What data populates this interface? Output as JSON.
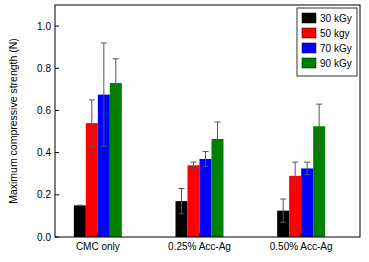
{
  "chart_data": {
    "type": "bar",
    "y_label": "Maximum compressive strength (N)",
    "categories": [
      "CMC only",
      "0.25% Acc-Ag",
      "0.50% Acc-Ag"
    ],
    "series": [
      {
        "name": "30 kGy",
        "color": "#000000",
        "values": [
          0.15,
          0.17,
          0.125
        ],
        "errors": [
          0,
          0.06,
          0.055
        ]
      },
      {
        "name": "50 kgy",
        "color": "#ff0000",
        "values": [
          0.54,
          0.34,
          0.29
        ],
        "errors": [
          0.11,
          0.015,
          0.065
        ]
      },
      {
        "name": "70 kGy",
        "color": "#0000ff",
        "values": [
          0.675,
          0.37,
          0.325
        ],
        "errors": [
          0.245,
          0.035,
          0.03
        ]
      },
      {
        "name": "90 kGy",
        "color": "#008000",
        "values": [
          0.73,
          0.465,
          0.525
        ],
        "errors": [
          0.115,
          0.08,
          0.105
        ]
      }
    ],
    "ylim": [
      0,
      1.1
    ],
    "yticks": [
      {
        "value": 0,
        "label": "0.0"
      },
      0.2,
      0.4,
      0.6,
      0.8,
      {
        "value": 1,
        "label": "1.0"
      }
    ],
    "legend": "top-right",
    "grid": false
  }
}
